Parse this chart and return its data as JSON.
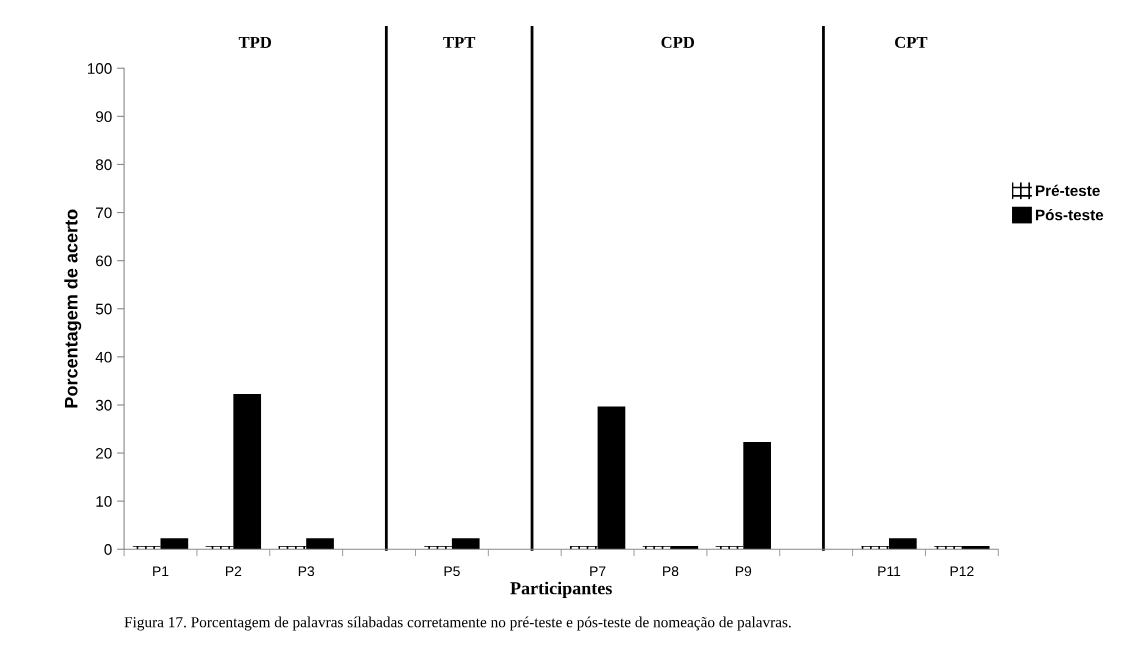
{
  "chart_data": {
    "type": "bar",
    "xlabel": "Participantes",
    "ylabel": "Porcentagem de acerto",
    "categories": [
      "P1",
      "P2",
      "P3",
      null,
      "P5",
      null,
      "P7",
      "P8",
      "P9",
      null,
      "P11",
      "P12"
    ],
    "series": [
      {
        "name": "Pré-teste",
        "color": "#ffffff",
        "values": [
          0.7,
          0.7,
          0.7,
          null,
          0.7,
          null,
          0.7,
          0.7,
          0.7,
          null,
          0.7,
          0.7
        ]
      },
      {
        "name": "Pós-teste",
        "color": "#000000",
        "values": [
          2.3,
          32.3,
          2.3,
          null,
          2.3,
          null,
          29.7,
          0.7,
          22.3,
          null,
          2.3,
          0.7
        ]
      }
    ],
    "ylim": [
      0,
      100
    ],
    "yticks": [
      0,
      10,
      20,
      30,
      40,
      50,
      60,
      70,
      80,
      90,
      100
    ],
    "annotations": [
      "TPD",
      "TPT",
      "CPD",
      "CPT",
      "Figura 17. Porcentagem de palavras sílabadas corretamente no pré-teste e pós-teste de nomeação de palavras."
    ],
    "legend": "right",
    "grid": false
  }
}
